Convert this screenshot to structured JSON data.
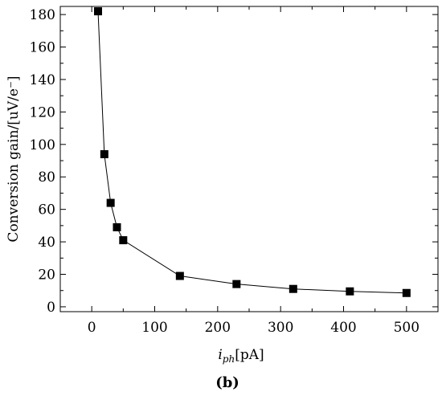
{
  "chart_data": {
    "type": "scatter",
    "connected": true,
    "marker": "square",
    "color": "#000000",
    "x": [
      10,
      20,
      30,
      40,
      50,
      140,
      230,
      320,
      410,
      500
    ],
    "y": [
      182,
      94,
      64,
      49,
      41,
      19,
      14,
      11,
      9.5,
      8.5
    ],
    "xlim": [
      -50,
      550
    ],
    "ylim": [
      -3,
      185
    ],
    "xticks": [
      0,
      100,
      200,
      300,
      400,
      500
    ],
    "yticks": [
      0,
      20,
      40,
      60,
      80,
      100,
      120,
      140,
      160,
      180
    ],
    "minor_ticks": true,
    "grid": false,
    "xlabel_main": "i",
    "xlabel_sub": "ph",
    "xlabel_unit": "[pA]",
    "ylabel": "Conversion gain/[uV/e⁻]",
    "panel_label": "(b)"
  }
}
